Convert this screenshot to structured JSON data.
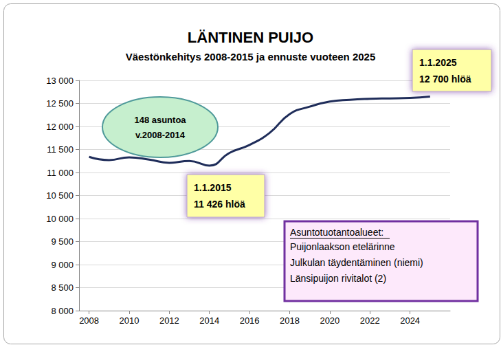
{
  "chart_data": {
    "type": "line",
    "title": "LÄNTINEN PUIJO",
    "subtitle": "Väestönkehitys 2008-2015 ja ennuste vuoteen 2025",
    "x": [
      2008,
      2009,
      2010,
      2011,
      2012,
      2013,
      2014,
      2015,
      2016,
      2017,
      2018,
      2019,
      2020,
      2021,
      2022,
      2023,
      2024,
      2025
    ],
    "values": [
      11340,
      11270,
      11330,
      11280,
      11210,
      11250,
      11150,
      11426,
      11600,
      11860,
      12270,
      12430,
      12540,
      12580,
      12600,
      12610,
      12620,
      12650
    ],
    "color": "#1f2d5a",
    "xlim": [
      2007.5,
      2026
    ],
    "xticks": [
      2008,
      2010,
      2012,
      2014,
      2016,
      2018,
      2020,
      2022,
      2024
    ],
    "ylim": [
      8000,
      13000
    ],
    "yticks": [
      {
        "value": 8000,
        "label": "8 000"
      },
      {
        "value": 8500,
        "label": "8 500"
      },
      {
        "value": 9000,
        "label": "9 000"
      },
      {
        "value": 9500,
        "label": "9 500"
      },
      {
        "value": 10000,
        "label": "10 000"
      },
      {
        "value": 10500,
        "label": "10 500"
      },
      {
        "value": 11000,
        "label": "11 000"
      },
      {
        "value": 11500,
        "label": "11 500"
      },
      {
        "value": 12000,
        "label": "12 000"
      },
      {
        "value": 12500,
        "label": "12 500"
      },
      {
        "value": 13000,
        "label": "13 000"
      }
    ],
    "grid": true,
    "annotations": [
      {
        "lines": [
          "148 asuntoa",
          "v.2008-2014"
        ]
      },
      {
        "lines": [
          "1.1.2015",
          "11 426 hlöä"
        ]
      },
      {
        "lines": [
          "1.1.2025",
          "12 700 hlöä"
        ]
      },
      {
        "heading": "Asuntotuotantoalueet:",
        "lines": [
          "Puijonlaakson etelärinne",
          "Julkulan täydentäminen (niemi)",
          "Länsipuijon rivitalot (2)"
        ]
      }
    ]
  }
}
